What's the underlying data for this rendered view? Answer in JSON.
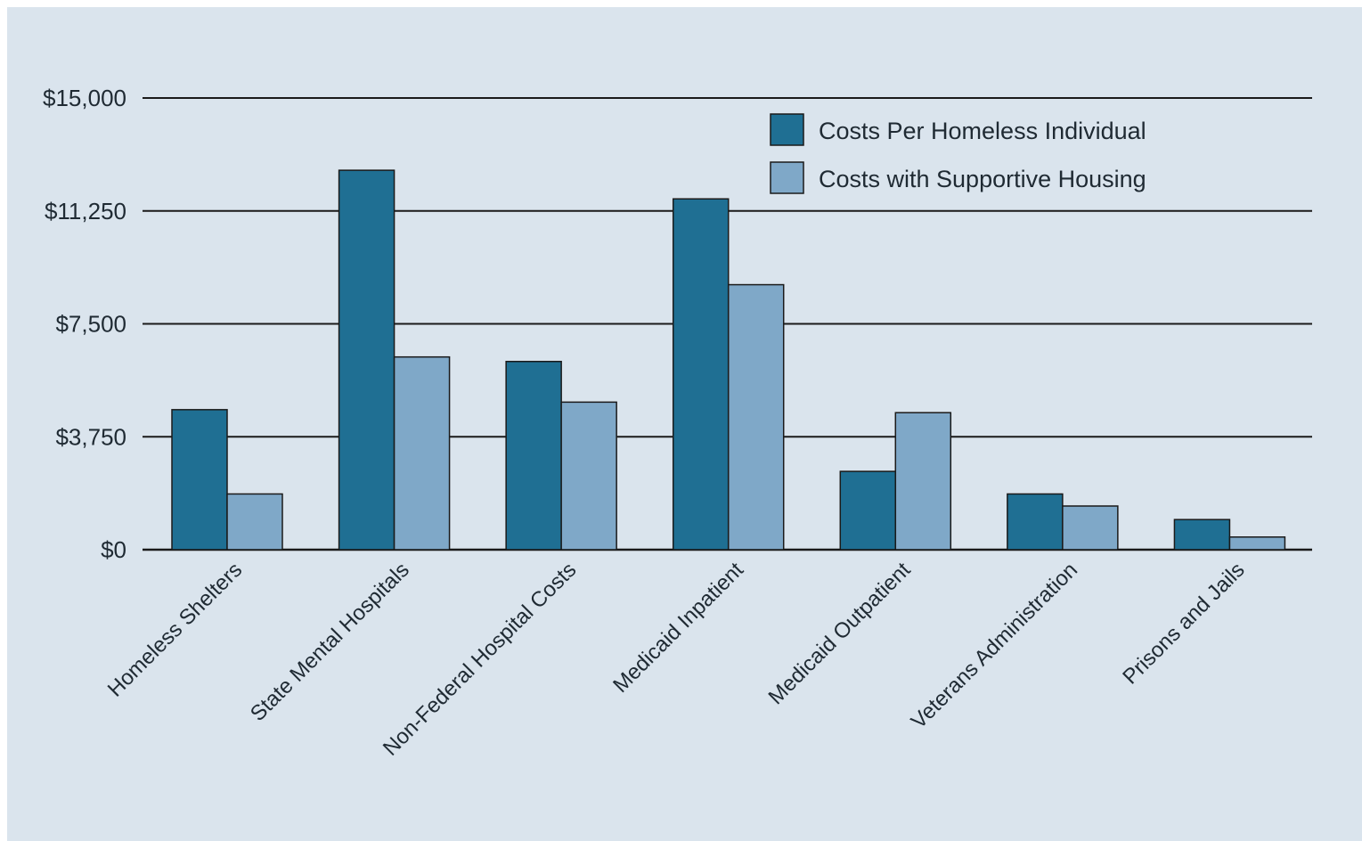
{
  "chart_data": {
    "type": "bar",
    "categories": [
      "Homeless Shelters",
      "State Mental Hospitals",
      "Non-Federal Hospital Costs",
      "Medicaid Inpatient",
      "Medicaid Outpatient",
      "Veterans Administration",
      "Prisons and Jails"
    ],
    "series": [
      {
        "name": "Costs Per Homeless Individual",
        "color": "#1f6f93",
        "values": [
          4650,
          12600,
          6250,
          11650,
          2600,
          1850,
          1000
        ]
      },
      {
        "name": "Costs with Supportive Housing",
        "color": "#7fa8c8",
        "values": [
          1850,
          6400,
          4900,
          8800,
          4550,
          1450,
          420
        ]
      }
    ],
    "y_ticks": [
      "$0",
      "$3,750",
      "$7,500",
      "$11,250",
      "$15,000"
    ],
    "ylim": [
      0,
      15000
    ],
    "grid": true,
    "legend_position": "top-right",
    "colors": {
      "background": "#dae4ed",
      "gridline": "#1a1a1a",
      "text": "#1f2a33"
    }
  }
}
